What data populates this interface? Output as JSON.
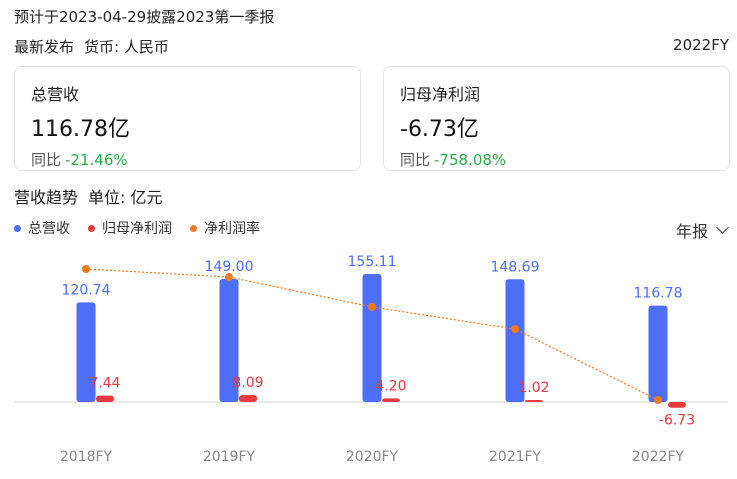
{
  "notice": "预计于2023-04-29披露2023第一季报",
  "meta": {
    "latest": "最新发布",
    "currency": "货币: 人民币"
  },
  "period_label": "2022FY",
  "cards": [
    {
      "title": "总营收",
      "value": "116.78亿",
      "change_label": "同比",
      "change_value": "-21.46%"
    },
    {
      "title": "归母净利润",
      "value": "-6.73亿",
      "change_label": "同比",
      "change_value": "-758.08%"
    }
  ],
  "trend": {
    "title": "营收趋势",
    "unit": "单位: 亿元"
  },
  "period_select": {
    "label": "年报"
  },
  "colors": {
    "revenue": "#4f6ef7",
    "profit": "#e8393c",
    "margin": "#f07a22",
    "positive": "#2eaa4a"
  },
  "chart_data": {
    "type": "bar",
    "categories": [
      "2018FY",
      "2019FY",
      "2020FY",
      "2021FY",
      "2022FY"
    ],
    "series": [
      {
        "name": "总营收",
        "kind": "bar",
        "values": [
          120.74,
          149.0,
          155.11,
          148.69,
          116.78
        ],
        "labels": [
          "120.74",
          "149.00",
          "155.11",
          "148.69",
          "116.78"
        ]
      },
      {
        "name": "归母净利润",
        "kind": "bar",
        "values": [
          7.44,
          8.09,
          4.2,
          1.02,
          -6.73
        ],
        "labels": [
          "7.44",
          "8.09",
          "4.20",
          "1.02",
          "-6.73"
        ]
      },
      {
        "name": "净利润率",
        "kind": "line",
        "values": [
          6.16,
          5.43,
          2.71,
          0.69,
          -5.76
        ]
      }
    ],
    "legend_position": "top-left",
    "grid": false
  }
}
